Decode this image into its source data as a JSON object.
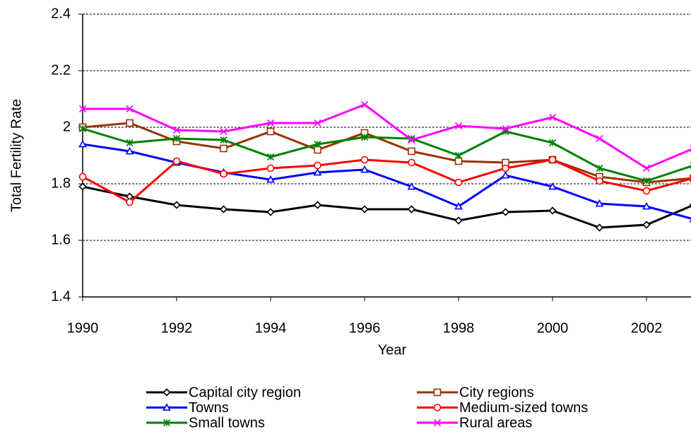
{
  "chart_data": {
    "type": "line",
    "x_label": "Year",
    "y_label": "Total Fertility Rate",
    "x": [
      1990,
      1991,
      1992,
      1993,
      1994,
      1995,
      1996,
      1997,
      1998,
      1999,
      2000,
      2001,
      2002,
      2003
    ],
    "xlim": [
      1990,
      2003
    ],
    "xticks": [
      1990,
      1992,
      1994,
      1996,
      1998,
      2000,
      2002
    ],
    "ylim": [
      1.4,
      2.4
    ],
    "yticks": [
      1.4,
      1.6,
      1.8,
      2.0,
      2.2,
      2.4
    ],
    "grid": true,
    "legend": "bottom",
    "series": [
      {
        "name": "Capital city region",
        "color": "#000000",
        "marker": "diamond",
        "values": [
          1.79,
          1.755,
          1.725,
          1.71,
          1.7,
          1.725,
          1.71,
          1.71,
          1.67,
          1.7,
          1.705,
          1.645,
          1.655,
          1.725
        ]
      },
      {
        "name": "City regions",
        "color": "#993300",
        "marker": "square",
        "values": [
          2.0,
          2.015,
          1.95,
          1.925,
          1.985,
          1.92,
          1.98,
          1.915,
          1.88,
          1.875,
          1.885,
          1.825,
          1.805,
          1.82
        ]
      },
      {
        "name": "Towns",
        "color": "#0000ff",
        "marker": "triangle",
        "values": [
          1.94,
          1.915,
          1.875,
          1.84,
          1.815,
          1.84,
          1.85,
          1.79,
          1.72,
          1.83,
          1.79,
          1.73,
          1.72,
          1.675
        ]
      },
      {
        "name": "Medium-sized towns",
        "color": "#ff0000",
        "marker": "circle",
        "values": [
          1.825,
          1.735,
          1.88,
          1.835,
          1.855,
          1.865,
          1.885,
          1.875,
          1.805,
          1.855,
          1.885,
          1.81,
          1.775,
          1.82
        ]
      },
      {
        "name": "Small towns",
        "color": "#008000",
        "marker": "star",
        "values": [
          1.995,
          1.945,
          1.96,
          1.955,
          1.895,
          1.94,
          1.965,
          1.96,
          1.9,
          1.985,
          1.945,
          1.855,
          1.81,
          1.865
        ]
      },
      {
        "name": "Rural areas",
        "color": "#ff00ff",
        "marker": "x",
        "values": [
          2.065,
          2.065,
          1.99,
          1.985,
          2.015,
          2.015,
          2.08,
          1.955,
          2.005,
          1.995,
          2.035,
          1.96,
          1.855,
          1.925
        ]
      }
    ]
  }
}
